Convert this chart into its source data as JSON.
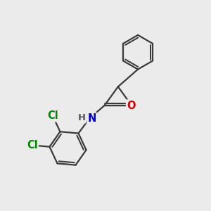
{
  "background_color": "#ebebeb",
  "bond_color": "#3a3a3a",
  "bond_width": 1.6,
  "atom_colors": {
    "C": "#3a3a3a",
    "N": "#0000cc",
    "O": "#cc0000",
    "Cl": "#008800",
    "H": "#555555"
  },
  "font_size": 10.5,
  "figsize": [
    3.0,
    3.0
  ],
  "dpi": 100
}
